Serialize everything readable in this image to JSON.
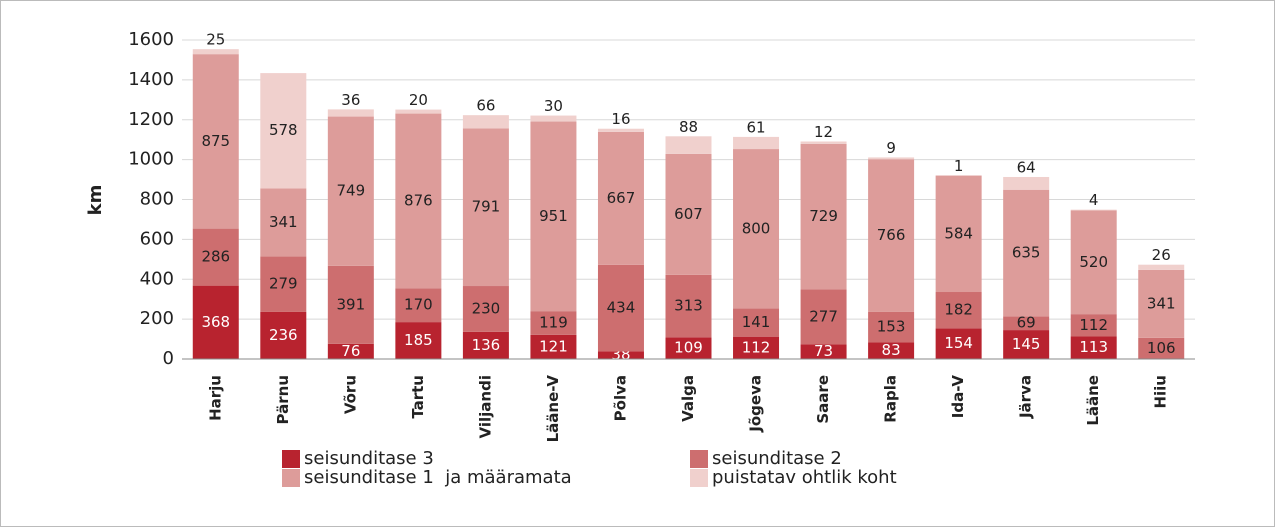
{
  "chart_data": {
    "type": "stacked_bar",
    "y_label": "km",
    "categories": [
      "Harju",
      "Pärnu",
      "Võru",
      "Tartu",
      "Viljandi",
      "Lääne-V",
      "Põlva",
      "Valga",
      "Jõgeva",
      "Saare",
      "Rapla",
      "Ida-V",
      "Järva",
      "Lääne",
      "Hiiu"
    ],
    "series": [
      {
        "name": "seisunditase 3",
        "color": "#b8232f",
        "values": [
          368,
          236,
          76,
          185,
          136,
          121,
          38,
          109,
          112,
          73,
          83,
          154,
          145,
          113,
          null
        ]
      },
      {
        "name": "seisunditase 2",
        "color": "#cd6e6f",
        "values": [
          286,
          279,
          391,
          170,
          230,
          119,
          434,
          313,
          141,
          277,
          153,
          182,
          69,
          112,
          106
        ]
      },
      {
        "name": "seisunditase 1  ja määramata",
        "color": "#dd9c9a",
        "values": [
          875,
          341,
          749,
          876,
          791,
          951,
          667,
          607,
          800,
          729,
          766,
          584,
          635,
          520,
          341
        ]
      },
      {
        "name": "puistatav ohtlik koht",
        "color": "#f0d0cd",
        "values": [
          25,
          578,
          36,
          20,
          66,
          30,
          16,
          88,
          61,
          12,
          9,
          1,
          64,
          4,
          26
        ]
      }
    ],
    "ylim": [
      0,
      1600
    ],
    "yticks": [
      0,
      200,
      400,
      600,
      800,
      1000,
      1200,
      1400,
      1600
    ],
    "grid": true
  }
}
